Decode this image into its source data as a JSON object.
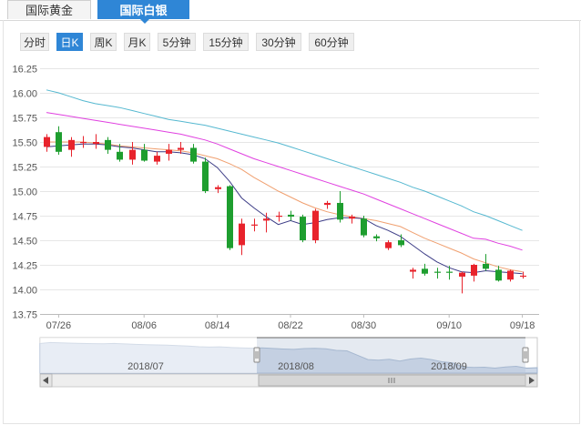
{
  "tabs": [
    {
      "label": "国际黄金",
      "active": false
    },
    {
      "label": "国际白银",
      "active": true
    }
  ],
  "periods": [
    {
      "label": "分时",
      "active": false
    },
    {
      "label": "日K",
      "active": true
    },
    {
      "label": "周K",
      "active": false
    },
    {
      "label": "月K",
      "active": false
    },
    {
      "label": "5分钟",
      "active": false
    },
    {
      "label": "15分钟",
      "active": false
    },
    {
      "label": "30分钟",
      "active": false
    },
    {
      "label": "60分钟",
      "active": false
    }
  ],
  "colors": {
    "up": "#e8232c",
    "down": "#1e9e2f",
    "accent": "#2f86d6",
    "ma5": "#3c3c86",
    "ma10": "#f0a070",
    "ma20": "#e040e0",
    "ma30": "#55b8d0"
  },
  "navigator": {
    "labels": [
      "2018/07",
      "2018/08",
      "2018/09"
    ]
  },
  "chart_data": {
    "type": "candlestick",
    "ylim": [
      13.75,
      16.25
    ],
    "yticks": [
      "13.75",
      "14.00",
      "14.25",
      "14.50",
      "14.75",
      "15.00",
      "15.25",
      "15.50",
      "15.75",
      "16.00",
      "16.25"
    ],
    "xticks": [
      "07/26",
      "08/06",
      "08/14",
      "08/22",
      "08/30",
      "09/10",
      "09/18"
    ],
    "grid": true,
    "candles": [
      {
        "o": 15.45,
        "h": 15.58,
        "l": 15.4,
        "c": 15.55
      },
      {
        "o": 15.6,
        "h": 15.66,
        "l": 15.37,
        "c": 15.4
      },
      {
        "o": 15.42,
        "h": 15.55,
        "l": 15.35,
        "c": 15.52
      },
      {
        "o": 15.5,
        "h": 15.56,
        "l": 15.44,
        "c": 15.5
      },
      {
        "o": 15.48,
        "h": 15.58,
        "l": 15.43,
        "c": 15.5
      },
      {
        "o": 15.52,
        "h": 15.55,
        "l": 15.38,
        "c": 15.42
      },
      {
        "o": 15.4,
        "h": 15.48,
        "l": 15.3,
        "c": 15.32
      },
      {
        "o": 15.32,
        "h": 15.5,
        "l": 15.27,
        "c": 15.42
      },
      {
        "o": 15.42,
        "h": 15.48,
        "l": 15.3,
        "c": 15.31
      },
      {
        "o": 15.3,
        "h": 15.4,
        "l": 15.27,
        "c": 15.36
      },
      {
        "o": 15.38,
        "h": 15.48,
        "l": 15.31,
        "c": 15.42
      },
      {
        "o": 15.42,
        "h": 15.5,
        "l": 15.38,
        "c": 15.44
      },
      {
        "o": 15.44,
        "h": 15.48,
        "l": 15.28,
        "c": 15.3
      },
      {
        "o": 15.3,
        "h": 15.34,
        "l": 14.98,
        "c": 15.0
      },
      {
        "o": 15.02,
        "h": 15.06,
        "l": 14.98,
        "c": 15.04
      },
      {
        "o": 15.05,
        "h": 15.06,
        "l": 14.4,
        "c": 14.42
      },
      {
        "o": 14.45,
        "h": 14.72,
        "l": 14.35,
        "c": 14.67
      },
      {
        "o": 14.65,
        "h": 14.72,
        "l": 14.59,
        "c": 14.66
      },
      {
        "o": 14.7,
        "h": 14.78,
        "l": 14.58,
        "c": 14.72
      },
      {
        "o": 14.74,
        "h": 14.79,
        "l": 14.69,
        "c": 14.75
      },
      {
        "o": 14.76,
        "h": 14.8,
        "l": 14.7,
        "c": 14.74
      },
      {
        "o": 14.74,
        "h": 14.76,
        "l": 14.48,
        "c": 14.5
      },
      {
        "o": 14.5,
        "h": 14.82,
        "l": 14.47,
        "c": 14.8
      },
      {
        "o": 14.86,
        "h": 14.9,
        "l": 14.82,
        "c": 14.88
      },
      {
        "o": 14.88,
        "h": 15.0,
        "l": 14.68,
        "c": 14.71
      },
      {
        "o": 14.72,
        "h": 14.76,
        "l": 14.67,
        "c": 14.74
      },
      {
        "o": 14.72,
        "h": 14.75,
        "l": 14.53,
        "c": 14.55
      },
      {
        "o": 14.54,
        "h": 14.56,
        "l": 14.49,
        "c": 14.52
      },
      {
        "o": 14.42,
        "h": 14.5,
        "l": 14.4,
        "c": 14.48
      },
      {
        "o": 14.5,
        "h": 14.56,
        "l": 14.43,
        "c": 14.45
      },
      {
        "o": 14.18,
        "h": 14.22,
        "l": 14.11,
        "c": 14.2
      },
      {
        "o": 14.21,
        "h": 14.26,
        "l": 14.14,
        "c": 14.16
      },
      {
        "o": 14.18,
        "h": 14.22,
        "l": 14.11,
        "c": 14.17
      },
      {
        "o": 14.18,
        "h": 14.24,
        "l": 14.1,
        "c": 14.17
      },
      {
        "o": 14.13,
        "h": 14.18,
        "l": 13.96,
        "c": 14.17
      },
      {
        "o": 14.14,
        "h": 14.26,
        "l": 14.08,
        "c": 14.25
      },
      {
        "o": 14.26,
        "h": 14.36,
        "l": 14.19,
        "c": 14.21
      },
      {
        "o": 14.2,
        "h": 14.24,
        "l": 14.08,
        "c": 14.09
      },
      {
        "o": 14.1,
        "h": 14.2,
        "l": 14.08,
        "c": 14.19
      },
      {
        "o": 14.14,
        "h": 14.18,
        "l": 14.11,
        "c": 14.14
      }
    ],
    "ma5": [
      15.45,
      15.46,
      15.47,
      15.48,
      15.48,
      15.47,
      15.45,
      15.44,
      15.42,
      15.4,
      15.4,
      15.39,
      15.37,
      15.33,
      15.24,
      15.1,
      14.93,
      14.83,
      14.74,
      14.66,
      14.7,
      14.66,
      14.68,
      14.71,
      14.73,
      14.73,
      14.72,
      14.65,
      14.6,
      14.54,
      14.45,
      14.36,
      14.28,
      14.22,
      14.18,
      14.17,
      14.19,
      14.18,
      14.17,
      14.16
    ],
    "ma10": [
      15.5,
      15.5,
      15.5,
      15.5,
      15.49,
      15.48,
      15.46,
      15.45,
      15.44,
      15.43,
      15.42,
      15.41,
      15.39,
      15.36,
      15.33,
      15.28,
      15.22,
      15.14,
      15.07,
      15.0,
      14.94,
      14.88,
      14.83,
      14.79,
      14.76,
      14.74,
      14.72,
      14.7,
      14.67,
      14.64,
      14.58,
      14.52,
      14.47,
      14.42,
      14.37,
      14.31,
      14.27,
      14.23,
      14.2,
      14.18
    ],
    "ma20": [
      15.8,
      15.78,
      15.76,
      15.74,
      15.72,
      15.7,
      15.68,
      15.66,
      15.64,
      15.62,
      15.6,
      15.58,
      15.55,
      15.52,
      15.48,
      15.43,
      15.38,
      15.33,
      15.29,
      15.25,
      15.21,
      15.17,
      15.13,
      15.09,
      15.05,
      15.01,
      14.97,
      14.92,
      14.87,
      14.82,
      14.77,
      14.72,
      14.67,
      14.62,
      14.57,
      14.52,
      14.51,
      14.47,
      14.44,
      14.4
    ],
    "ma30": [
      16.03,
      16.0,
      15.96,
      15.92,
      15.89,
      15.87,
      15.85,
      15.82,
      15.79,
      15.76,
      15.73,
      15.71,
      15.69,
      15.67,
      15.64,
      15.61,
      15.58,
      15.55,
      15.52,
      15.49,
      15.45,
      15.41,
      15.37,
      15.33,
      15.29,
      15.25,
      15.21,
      15.17,
      15.13,
      15.09,
      15.04,
      15.0,
      14.95,
      14.9,
      14.85,
      14.79,
      14.75,
      14.7,
      14.65,
      14.6
    ]
  }
}
